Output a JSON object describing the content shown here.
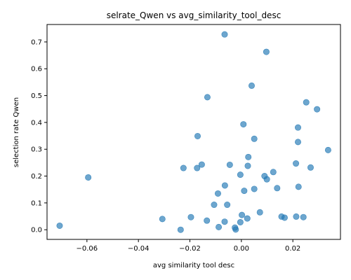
{
  "chart_data": {
    "type": "scatter",
    "title": "selrate_Qwen vs avg_similarity_tool_desc",
    "xlabel": "avg similarity tool desc",
    "ylabel": "selection rate Qwen",
    "xlim": [
      -0.0755,
      0.0385
    ],
    "ylim": [
      -0.036,
      0.765
    ],
    "xticks": [
      -0.06,
      -0.04,
      -0.02,
      0.0,
      0.02
    ],
    "xtick_labels": [
      "−0.06",
      "−0.04",
      "−0.02",
      "0.00",
      "0.02"
    ],
    "yticks": [
      0.0,
      0.1,
      0.2,
      0.3,
      0.4,
      0.5,
      0.6,
      0.7
    ],
    "ytick_labels": [
      "0.0",
      "0.1",
      "0.2",
      "0.3",
      "0.4",
      "0.5",
      "0.6",
      "0.7"
    ],
    "grid": false,
    "marker_color": "#1f77b4",
    "points": [
      [
        -0.0706,
        0.015
      ],
      [
        -0.0595,
        0.195
      ],
      [
        -0.0307,
        0.04
      ],
      [
        -0.0236,
        0.0
      ],
      [
        -0.0225,
        0.23
      ],
      [
        -0.0196,
        0.047
      ],
      [
        -0.017,
        0.349
      ],
      [
        -0.0172,
        0.23
      ],
      [
        -0.0154,
        0.243
      ],
      [
        -0.0132,
        0.494
      ],
      [
        -0.0134,
        0.034
      ],
      [
        -0.0106,
        0.093
      ],
      [
        -0.0091,
        0.135
      ],
      [
        -0.0088,
        0.01
      ],
      [
        -0.0065,
        0.728
      ],
      [
        -0.0064,
        0.165
      ],
      [
        -0.0065,
        0.03
      ],
      [
        -0.0055,
        0.093
      ],
      [
        -0.0045,
        0.242
      ],
      [
        -0.0025,
        0.008
      ],
      [
        -0.0022,
        0.001
      ],
      [
        -0.0004,
        0.205
      ],
      [
        -0.0004,
        0.028
      ],
      [
        0.0002,
        0.055
      ],
      [
        0.0008,
        0.393
      ],
      [
        0.0011,
        0.145
      ],
      [
        0.0023,
        0.042
      ],
      [
        0.0025,
        0.238
      ],
      [
        0.0027,
        0.271
      ],
      [
        0.004,
        0.537
      ],
      [
        0.005,
        0.339
      ],
      [
        0.005,
        0.152
      ],
      [
        0.0072,
        0.065
      ],
      [
        0.009,
        0.2
      ],
      [
        0.0097,
        0.663
      ],
      [
        0.0099,
        0.188
      ],
      [
        0.0124,
        0.215
      ],
      [
        0.0139,
        0.155
      ],
      [
        0.0156,
        0.049
      ],
      [
        0.0168,
        0.045
      ],
      [
        0.0212,
        0.247
      ],
      [
        0.0213,
        0.049
      ],
      [
        0.022,
        0.381
      ],
      [
        0.022,
        0.327
      ],
      [
        0.0222,
        0.16
      ],
      [
        0.0241,
        0.047
      ],
      [
        0.0252,
        0.475
      ],
      [
        0.0269,
        0.232
      ],
      [
        0.0294,
        0.449
      ],
      [
        0.0337,
        0.297
      ]
    ]
  }
}
